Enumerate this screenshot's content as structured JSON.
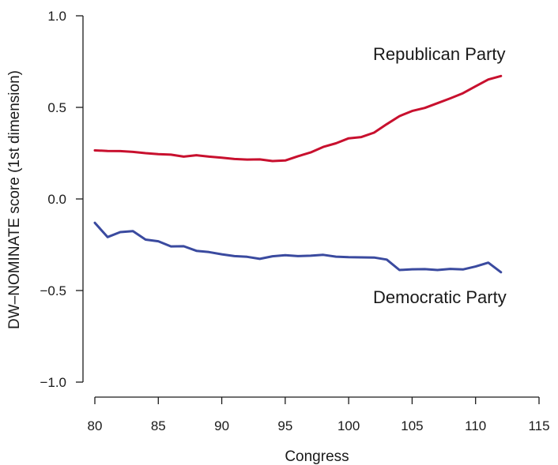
{
  "chart_data": {
    "type": "line",
    "xlabel": "Congress",
    "ylabel": "DW–NOMINATE score (1st dimension)",
    "xlim": [
      80,
      115
    ],
    "ylim": [
      -1.0,
      1.0
    ],
    "x_ticks": [
      80,
      85,
      90,
      95,
      100,
      105,
      110,
      115
    ],
    "y_ticks": [
      1.0,
      0.5,
      0.0,
      -0.5,
      -1.0
    ],
    "y_tick_labels": [
      "1.0",
      "0.5",
      "0.0",
      "−0.5",
      "−1.0"
    ],
    "grid": false,
    "x": [
      80,
      81,
      82,
      83,
      84,
      85,
      86,
      87,
      88,
      89,
      90,
      91,
      92,
      93,
      94,
      95,
      96,
      97,
      98,
      99,
      100,
      101,
      102,
      103,
      104,
      105,
      106,
      107,
      108,
      109,
      110,
      111,
      112
    ],
    "series": [
      {
        "name": "Republican Party",
        "color": "#c8102e",
        "values": [
          0.265,
          0.262,
          0.261,
          0.257,
          0.25,
          0.245,
          0.242,
          0.231,
          0.239,
          0.231,
          0.225,
          0.218,
          0.215,
          0.216,
          0.207,
          0.21,
          0.233,
          0.254,
          0.284,
          0.304,
          0.331,
          0.338,
          0.362,
          0.408,
          0.452,
          0.48,
          0.497,
          0.523,
          0.549,
          0.577,
          0.615,
          0.652,
          0.671
        ]
      },
      {
        "name": "Democratic Party",
        "color": "#3a4a9f",
        "values": [
          -0.13,
          -0.208,
          -0.181,
          -0.176,
          -0.222,
          -0.231,
          -0.259,
          -0.258,
          -0.283,
          -0.29,
          -0.302,
          -0.312,
          -0.316,
          -0.327,
          -0.313,
          -0.307,
          -0.312,
          -0.31,
          -0.305,
          -0.315,
          -0.318,
          -0.319,
          -0.32,
          -0.331,
          -0.388,
          -0.384,
          -0.383,
          -0.388,
          -0.382,
          -0.385,
          -0.369,
          -0.348,
          -0.4
        ]
      }
    ]
  }
}
